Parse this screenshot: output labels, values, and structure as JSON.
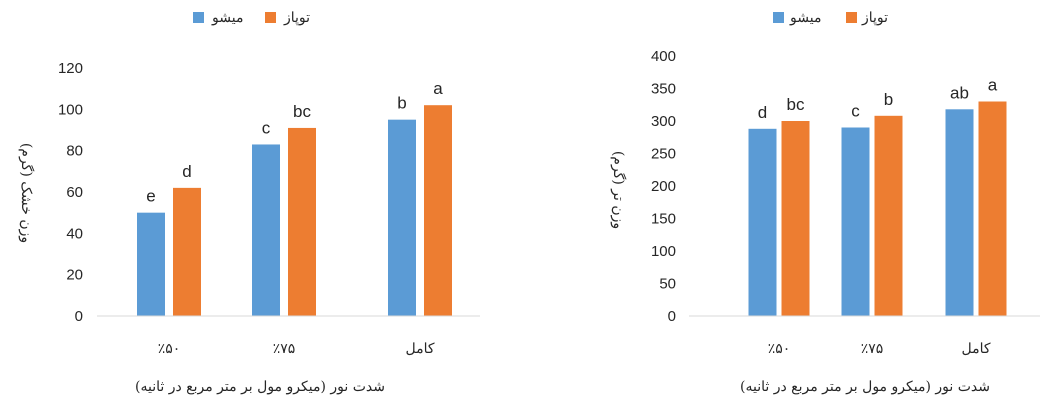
{
  "colors": {
    "series_1": "#5B9BD5",
    "series_2": "#ED7D31",
    "axis": "#d9d9d9",
    "text": "#262626"
  },
  "chart_data": [
    {
      "type": "bar",
      "categories": [
        "٪۵۰",
        "٪۷۵",
        "کامل"
      ],
      "series": [
        {
          "name": "میشو",
          "values": [
            50,
            83,
            95
          ],
          "letters": [
            "e",
            "c",
            "b"
          ]
        },
        {
          "name": "توپاز",
          "values": [
            62,
            91,
            102
          ],
          "letters": [
            "d",
            "bc",
            "a"
          ]
        }
      ],
      "xlabel": "شدت نور (میکرو مول بر متر مربع در ثانیه)",
      "ylabel": "وزن خشک (گرم)",
      "ylim": [
        0,
        120
      ],
      "yticks": [
        "0",
        "20",
        "40",
        "60",
        "80",
        "100",
        "120"
      ],
      "legend": "top",
      "grid": false
    },
    {
      "type": "bar",
      "categories": [
        "٪۵۰",
        "٪۷۵",
        "کامل"
      ],
      "series": [
        {
          "name": "میشو",
          "values": [
            288,
            290,
            318
          ],
          "letters": [
            "d",
            "c",
            "ab"
          ]
        },
        {
          "name": "توپاز",
          "values": [
            300,
            308,
            330
          ],
          "letters": [
            "bc",
            "b",
            "a"
          ]
        }
      ],
      "xlabel": "شدت نور (میکرو مول بر متر مربع در ثانیه)",
      "ylabel": "وزن تر (گرم)",
      "ylim": [
        0,
        400
      ],
      "yticks": [
        "0",
        "50",
        "100",
        "150",
        "200",
        "250",
        "300",
        "350",
        "400"
      ],
      "legend": "top",
      "grid": false
    }
  ]
}
